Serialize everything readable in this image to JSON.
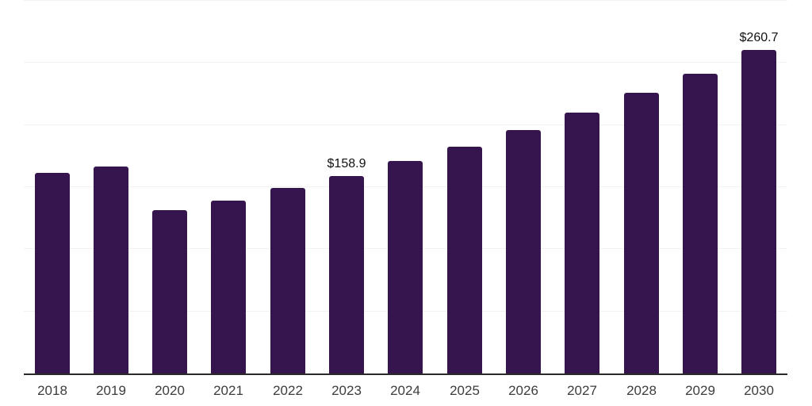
{
  "chart_data": {
    "type": "bar",
    "title": "",
    "xlabel": "",
    "ylabel": "",
    "categories": [
      "2018",
      "2019",
      "2020",
      "2021",
      "2022",
      "2023",
      "2024",
      "2025",
      "2026",
      "2027",
      "2028",
      "2029",
      "2030"
    ],
    "values": [
      161.5,
      166.6,
      131.5,
      139.1,
      149.3,
      158.9,
      171.0,
      182.5,
      195.9,
      210.0,
      225.9,
      241.2,
      260.7
    ],
    "data_labels": [
      {
        "category": "2023",
        "text": "$158.9"
      },
      {
        "category": "2030",
        "text": "$260.7"
      }
    ],
    "ylim": [
      0,
      300
    ],
    "grid": true,
    "gridline_values": [
      50,
      100,
      150,
      200,
      250,
      300
    ],
    "y_tick_labels_shown": false,
    "legend": false,
    "colors": {
      "bar": "#36154e",
      "grid": "#f2f2f2",
      "axis": "#2b2b2b",
      "tick_label": "#3c3c3c",
      "data_label": "#111111",
      "background": "#ffffff"
    }
  }
}
